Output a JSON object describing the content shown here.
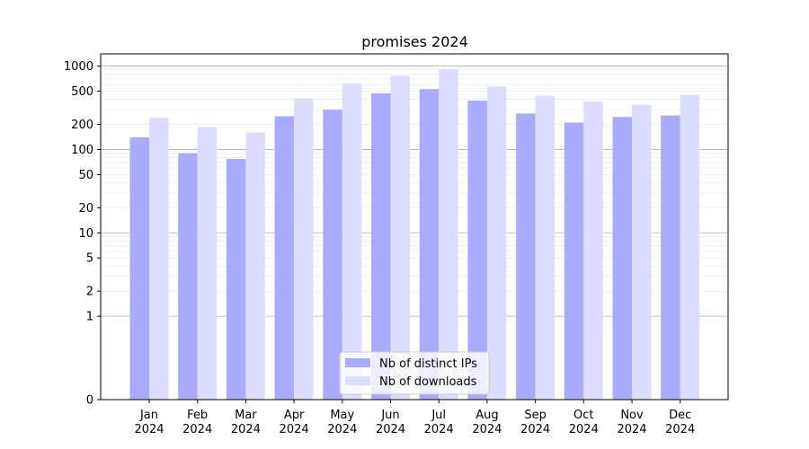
{
  "chart_data": {
    "type": "bar",
    "title": "promises 2024",
    "scale": "symlog",
    "ylim": [
      0,
      1400
    ],
    "yticks": [
      0,
      1,
      2,
      5,
      10,
      20,
      50,
      100,
      200,
      500,
      1000
    ],
    "categories": [
      [
        "Jan",
        "2024"
      ],
      [
        "Feb",
        "2024"
      ],
      [
        "Mar",
        "2024"
      ],
      [
        "Apr",
        "2024"
      ],
      [
        "May",
        "2024"
      ],
      [
        "Jun",
        "2024"
      ],
      [
        "Jul",
        "2024"
      ],
      [
        "Aug",
        "2024"
      ],
      [
        "Sep",
        "2024"
      ],
      [
        "Oct",
        "2024"
      ],
      [
        "Nov",
        "2024"
      ],
      [
        "Dec",
        "2024"
      ]
    ],
    "series": [
      {
        "name": "Nb of distinct IPs",
        "color": "#aaaaff",
        "values": [
          140,
          90,
          77,
          250,
          300,
          470,
          530,
          385,
          270,
          210,
          245,
          255
        ]
      },
      {
        "name": "Nb of downloads",
        "color": "#ddddff",
        "values": [
          240,
          185,
          160,
          410,
          620,
          770,
          920,
          570,
          440,
          375,
          345,
          450
        ]
      }
    ],
    "legend_position": "lower-center",
    "grid": true
  }
}
